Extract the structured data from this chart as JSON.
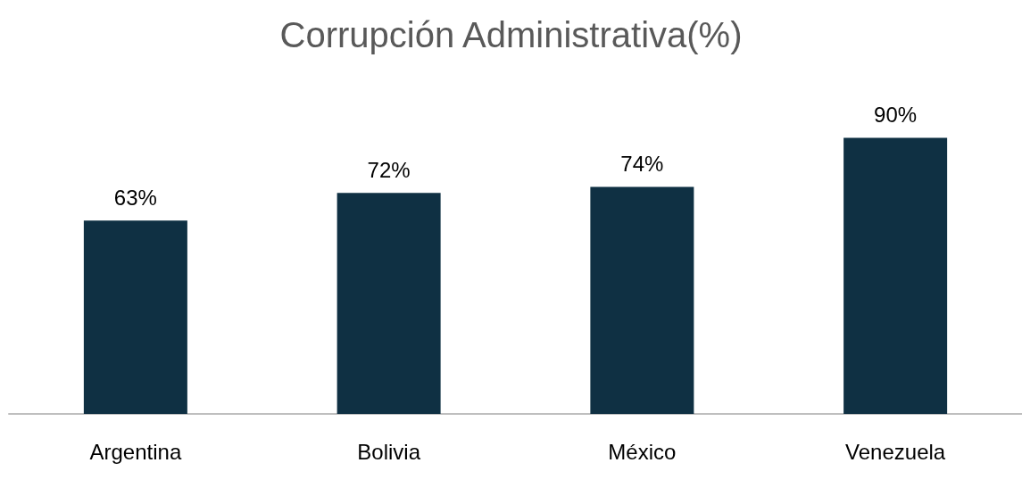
{
  "chart_data": {
    "type": "bar",
    "title": "Corrupción Administrativa(%)",
    "categories": [
      "Argentina",
      "Bolivia",
      "México",
      "Venezuela"
    ],
    "values": [
      63,
      72,
      74,
      90
    ],
    "value_labels": [
      "63%",
      "72%",
      "74%",
      "90%"
    ],
    "color": "#0f3043"
  }
}
